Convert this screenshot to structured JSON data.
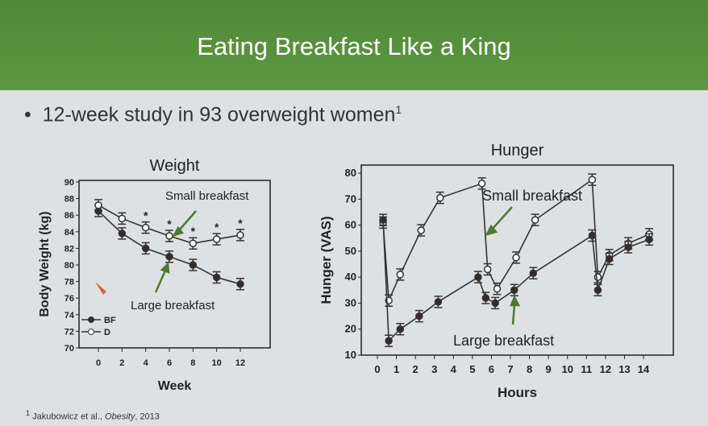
{
  "slide": {
    "title": "Eating Breakfast Like a King",
    "bullet": "12-week study in 93 overweight women",
    "bullet_sup": "1",
    "footnote_sup": "1",
    "footnote_pre": " Jakubowicz et al., ",
    "footnote_journal": "Obesity",
    "footnote_post": ", 2013"
  },
  "chart_data": [
    {
      "type": "line",
      "title": "Weight",
      "xlabel": "Week",
      "ylabel": "Body Weight (kg)",
      "xlim": [
        -1,
        13.5
      ],
      "ylim": [
        70,
        90
      ],
      "xticks": [
        0,
        2,
        4,
        6,
        8,
        10,
        12
      ],
      "yticks": [
        70,
        72,
        74,
        76,
        78,
        80,
        82,
        84,
        86,
        88,
        90
      ],
      "series": [
        {
          "name": "BF",
          "marker": "filled",
          "x": [
            0,
            2,
            4,
            6,
            8,
            10,
            12
          ],
          "values": [
            86.5,
            83.8,
            82,
            81,
            80,
            78.5,
            77.7
          ]
        },
        {
          "name": "D",
          "marker": "open",
          "x": [
            0,
            2,
            4,
            6,
            8,
            10,
            12
          ],
          "values": [
            87.2,
            85.6,
            84.5,
            83.5,
            82.6,
            83.1,
            83.6
          ]
        }
      ],
      "significance_weeks": [
        4,
        6,
        8,
        10,
        12
      ],
      "significance_mark": "*",
      "annotations": [
        "Small breakfast",
        "Large breakfast"
      ],
      "legend": "bottom-left",
      "arrow_color": "#4a7a2e"
    },
    {
      "type": "line",
      "title": "Hunger",
      "xlabel": "Hours",
      "ylabel": "Hunger (VAS)",
      "xlim": [
        -0.5,
        15
      ],
      "ylim": [
        10,
        80
      ],
      "xticks": [
        0,
        1,
        2,
        3,
        4,
        5,
        6,
        7,
        8,
        9,
        10,
        11,
        12,
        13,
        14
      ],
      "yticks": [
        10,
        20,
        30,
        40,
        50,
        60,
        70,
        80
      ],
      "series": [
        {
          "name": "Small breakfast",
          "marker": "open",
          "x": [
            0.3,
            0.6,
            1.2,
            2.3,
            3.3,
            5.5,
            5.8,
            6.3,
            7.3,
            8.3,
            11.3,
            11.6,
            12.2,
            13.2,
            14.3
          ],
          "values": [
            61,
            31,
            41,
            58,
            70.5,
            76,
            43,
            35.5,
            47.5,
            62,
            77.5,
            40,
            48.5,
            53,
            56.5
          ]
        },
        {
          "name": "Large breakfast",
          "marker": "filled",
          "x": [
            0.3,
            0.6,
            1.2,
            2.2,
            3.2,
            5.3,
            5.7,
            6.2,
            7.2,
            8.2,
            11.3,
            11.6,
            12.2,
            13.2,
            14.3
          ],
          "values": [
            62,
            15.5,
            20,
            25,
            30.5,
            40,
            32,
            30,
            35,
            41.5,
            56,
            35,
            47,
            51.5,
            54.5
          ]
        }
      ],
      "annotations": [
        "Small breakfast",
        "Large breakfast"
      ]
    }
  ]
}
